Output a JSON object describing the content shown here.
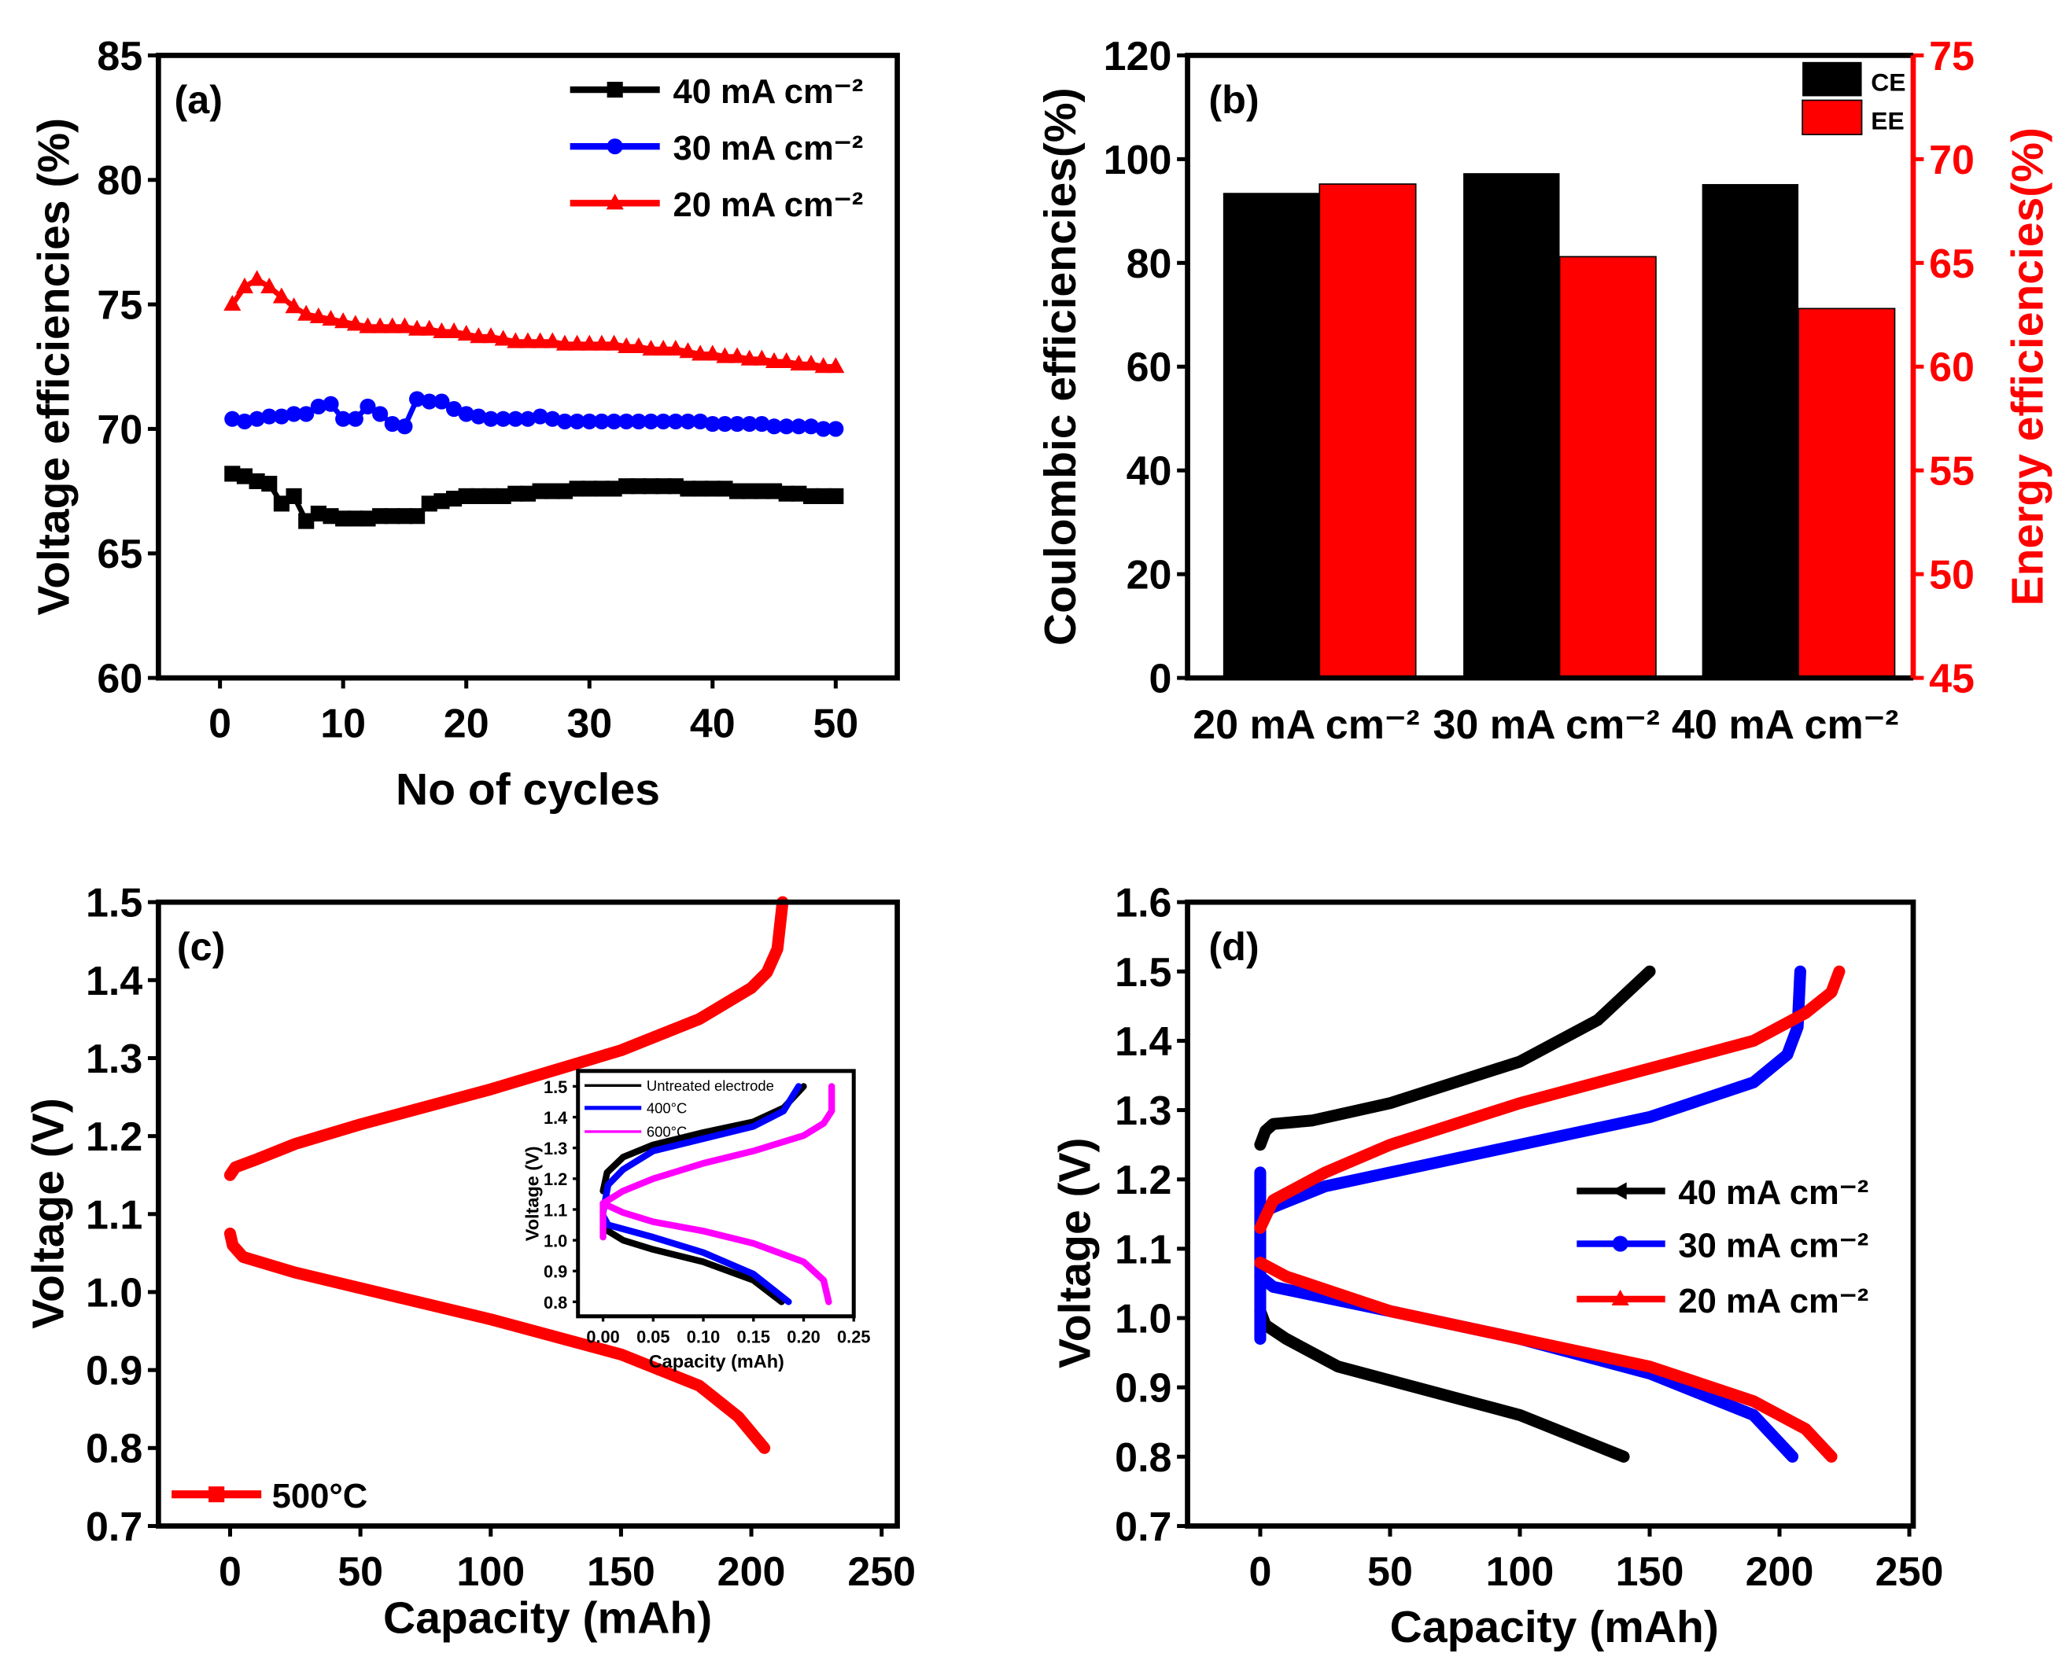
{
  "chart_data": [
    {
      "id": "a",
      "type": "line",
      "panel_label": "(a)",
      "xlabel": "No of cycles",
      "ylabel": "Voltage efficiencies (%)",
      "xlim": [
        -5,
        55
      ],
      "ylim": [
        60,
        85
      ],
      "xticks": [
        0,
        10,
        20,
        30,
        40,
        50
      ],
      "yticks": [
        60,
        65,
        70,
        75,
        80,
        85
      ],
      "legend_position": "top-right",
      "x": [
        1,
        2,
        3,
        4,
        5,
        6,
        7,
        8,
        9,
        10,
        11,
        12,
        13,
        14,
        15,
        16,
        17,
        18,
        19,
        20,
        21,
        22,
        23,
        24,
        25,
        26,
        27,
        28,
        29,
        30,
        31,
        32,
        33,
        34,
        35,
        36,
        37,
        38,
        39,
        40,
        41,
        42,
        43,
        44,
        45,
        46,
        47,
        48,
        49,
        50
      ],
      "series": [
        {
          "name": "40 mA cm⁻²",
          "color": "#000000",
          "marker": "square",
          "values": [
            68.2,
            68.1,
            67.9,
            67.8,
            67.0,
            67.3,
            66.3,
            66.6,
            66.5,
            66.4,
            66.4,
            66.4,
            66.5,
            66.5,
            66.5,
            66.5,
            67.0,
            67.1,
            67.2,
            67.3,
            67.3,
            67.3,
            67.3,
            67.4,
            67.4,
            67.5,
            67.5,
            67.5,
            67.6,
            67.6,
            67.6,
            67.6,
            67.7,
            67.7,
            67.7,
            67.7,
            67.7,
            67.6,
            67.6,
            67.6,
            67.6,
            67.5,
            67.5,
            67.5,
            67.5,
            67.4,
            67.4,
            67.3,
            67.3,
            67.3
          ]
        },
        {
          "name": "30 mA cm⁻²",
          "color": "#0000ff",
          "marker": "circle",
          "values": [
            70.4,
            70.3,
            70.4,
            70.5,
            70.5,
            70.6,
            70.6,
            70.9,
            71.0,
            70.4,
            70.4,
            70.9,
            70.6,
            70.2,
            70.1,
            71.2,
            71.1,
            71.1,
            70.8,
            70.6,
            70.5,
            70.4,
            70.4,
            70.4,
            70.4,
            70.5,
            70.4,
            70.3,
            70.3,
            70.3,
            70.3,
            70.3,
            70.3,
            70.3,
            70.3,
            70.3,
            70.3,
            70.3,
            70.3,
            70.2,
            70.2,
            70.2,
            70.2,
            70.2,
            70.1,
            70.1,
            70.1,
            70.1,
            70.0,
            70.0
          ]
        },
        {
          "name": "20 mA cm⁻²",
          "color": "#ff0000",
          "marker": "triangle",
          "values": [
            75.0,
            75.7,
            76.0,
            75.7,
            75.3,
            74.9,
            74.6,
            74.5,
            74.4,
            74.3,
            74.2,
            74.1,
            74.1,
            74.1,
            74.1,
            74.0,
            74.0,
            73.9,
            73.9,
            73.8,
            73.7,
            73.7,
            73.6,
            73.5,
            73.5,
            73.5,
            73.5,
            73.4,
            73.4,
            73.4,
            73.4,
            73.4,
            73.3,
            73.3,
            73.2,
            73.2,
            73.2,
            73.1,
            73.0,
            73.0,
            72.9,
            72.9,
            72.8,
            72.8,
            72.7,
            72.7,
            72.6,
            72.6,
            72.5,
            72.5
          ]
        }
      ]
    },
    {
      "id": "b",
      "type": "bar",
      "panel_label": "(b)",
      "categories": [
        "20 mA cm⁻²",
        "30 mA cm⁻²",
        "40 mA cm⁻²"
      ],
      "ylabel": "Coulombic efficiencies(%)",
      "y2label": "Energy efficiencies(%)",
      "ylim": [
        0,
        120
      ],
      "y2lim": [
        45,
        75
      ],
      "yticks": [
        0,
        20,
        40,
        60,
        80,
        100,
        120
      ],
      "y2ticks": [
        45,
        50,
        55,
        60,
        65,
        70,
        75
      ],
      "legend_position": "top-right",
      "series": [
        {
          "name": "CE",
          "color": "#000000",
          "axis": "left",
          "values": [
            93.5,
            97.3,
            95.2
          ]
        },
        {
          "name": "EE",
          "color": "#ff0000",
          "axis": "right",
          "values": [
            68.8,
            65.3,
            62.8
          ]
        }
      ]
    },
    {
      "id": "c",
      "type": "line",
      "panel_label": "(c)",
      "xlabel": "Capacity (mAh)",
      "ylabel": "Voltage (V)",
      "xlim": [
        -27.5,
        256
      ],
      "ylim": [
        0.7,
        1.5
      ],
      "xticks": [
        0,
        50,
        100,
        150,
        200,
        250
      ],
      "yticks": [
        "0.7",
        "0.8",
        "0.9",
        "1.0",
        "1.1",
        "1.2",
        "1.3",
        "1.4",
        "1.5"
      ],
      "legend_position": "bottom-left",
      "series": [
        {
          "name": "500°C",
          "color": "#ff0000",
          "charge": [
            [
              0,
              1.15
            ],
            [
              2,
              1.16
            ],
            [
              10,
              1.17
            ],
            [
              25,
              1.19
            ],
            [
              50,
              1.215
            ],
            [
              100,
              1.26
            ],
            [
              150,
              1.31
            ],
            [
              180,
              1.35
            ],
            [
              200,
              1.39
            ],
            [
              206,
              1.41
            ],
            [
              210,
              1.44
            ],
            [
              212,
              1.5
            ]
          ],
          "discharge": [
            [
              0,
              1.075
            ],
            [
              1,
              1.06
            ],
            [
              5,
              1.045
            ],
            [
              25,
              1.025
            ],
            [
              50,
              1.005
            ],
            [
              100,
              0.965
            ],
            [
              150,
              0.92
            ],
            [
              180,
              0.88
            ],
            [
              195,
              0.84
            ],
            [
              205,
              0.8
            ]
          ]
        }
      ]
    },
    {
      "id": "c-inset",
      "type": "line",
      "xlabel": "Capacity (mAh)",
      "ylabel": "Voltage (V)",
      "xlim": [
        -0.025,
        0.25
      ],
      "ylim": [
        0.753,
        1.55
      ],
      "xticks": [
        "0.00",
        "0.05",
        "0.10",
        "0.15",
        "0.20",
        "0.25"
      ],
      "yticks": [
        "0.8",
        "0.9",
        "1.0",
        "1.1",
        "1.2",
        "1.3",
        "1.4",
        "1.5"
      ],
      "legend_position": "top-left",
      "series": [
        {
          "name": "Untreated electrode",
          "color": "#000000",
          "charge": [
            [
              0,
              1.16
            ],
            [
              0.004,
              1.22
            ],
            [
              0.02,
              1.27
            ],
            [
              0.05,
              1.31
            ],
            [
              0.1,
              1.35
            ],
            [
              0.15,
              1.385
            ],
            [
              0.18,
              1.43
            ],
            [
              0.2,
              1.5
            ]
          ],
          "discharge": [
            [
              0,
              1.04
            ],
            [
              0.02,
              1.0
            ],
            [
              0.05,
              0.97
            ],
            [
              0.1,
              0.93
            ],
            [
              0.15,
              0.87
            ],
            [
              0.178,
              0.8
            ]
          ]
        },
        {
          "name": "400°C",
          "color": "#0000ff",
          "charge": [
            [
              0,
              1.09
            ],
            [
              0.005,
              1.18
            ],
            [
              0.02,
              1.23
            ],
            [
              0.05,
              1.29
            ],
            [
              0.1,
              1.33
            ],
            [
              0.15,
              1.37
            ],
            [
              0.18,
              1.42
            ],
            [
              0.195,
              1.5
            ]
          ],
          "discharge": [
            [
              0,
              1.08
            ],
            [
              0.005,
              1.05
            ],
            [
              0.05,
              1.01
            ],
            [
              0.1,
              0.96
            ],
            [
              0.15,
              0.89
            ],
            [
              0.185,
              0.8
            ]
          ]
        },
        {
          "name": "600°C",
          "color": "#ff00ff",
          "charge": [
            [
              0,
              1.01
            ],
            [
              0,
              1.12
            ],
            [
              0.02,
              1.16
            ],
            [
              0.05,
              1.2
            ],
            [
              0.1,
              1.25
            ],
            [
              0.15,
              1.29
            ],
            [
              0.2,
              1.34
            ],
            [
              0.22,
              1.38
            ],
            [
              0.228,
              1.42
            ],
            [
              0.228,
              1.5
            ]
          ],
          "discharge": [
            [
              0,
              1.12
            ],
            [
              0.02,
              1.09
            ],
            [
              0.05,
              1.06
            ],
            [
              0.1,
              1.03
            ],
            [
              0.15,
              0.99
            ],
            [
              0.2,
              0.93
            ],
            [
              0.22,
              0.87
            ],
            [
              0.225,
              0.8
            ]
          ]
        }
      ]
    },
    {
      "id": "d",
      "type": "line",
      "panel_label": "(d)",
      "xlabel": "Capacity (mAh)",
      "ylabel": "Voltage (V)",
      "xlim": [
        -28,
        251.5
      ],
      "ylim": [
        0.7,
        1.6
      ],
      "xticks": [
        0,
        50,
        100,
        150,
        200,
        250
      ],
      "yticks": [
        "0.7",
        "0.8",
        "0.9",
        "1.0",
        "1.1",
        "1.2",
        "1.3",
        "1.4",
        "1.5",
        "1.6"
      ],
      "legend_position": "center-right",
      "series": [
        {
          "name": "40 mA cm⁻²",
          "color": "#000000",
          "charge": [
            [
              0,
              1.25
            ],
            [
              2,
              1.27
            ],
            [
              5,
              1.28
            ],
            [
              20,
              1.285
            ],
            [
              50,
              1.31
            ],
            [
              100,
              1.37
            ],
            [
              130,
              1.43
            ],
            [
              150,
              1.5
            ]
          ],
          "discharge": [
            [
              0,
              1.01
            ],
            [
              2,
              0.99
            ],
            [
              10,
              0.97
            ],
            [
              30,
              0.93
            ],
            [
              50,
              0.91
            ],
            [
              100,
              0.86
            ],
            [
              140,
              0.8
            ]
          ]
        },
        {
          "name": "30 mA cm⁻²",
          "color": "#0000ff",
          "charge": [
            [
              0,
              0.97
            ],
            [
              0,
              1.21
            ],
            [
              0,
              1.15
            ],
            [
              5,
              1.16
            ],
            [
              25,
              1.19
            ],
            [
              50,
              1.21
            ],
            [
              100,
              1.25
            ],
            [
              150,
              1.29
            ],
            [
              190,
              1.34
            ],
            [
              203,
              1.38
            ],
            [
              207,
              1.42
            ],
            [
              208,
              1.5
            ]
          ],
          "discharge": [
            [
              0,
              1.06
            ],
            [
              5,
              1.045
            ],
            [
              50,
              1.01
            ],
            [
              100,
              0.97
            ],
            [
              150,
              0.92
            ],
            [
              190,
              0.86
            ],
            [
              205,
              0.8
            ]
          ]
        },
        {
          "name": "20 mA cm⁻²",
          "color": "#ff0000",
          "charge": [
            [
              0,
              1.13
            ],
            [
              5,
              1.17
            ],
            [
              25,
              1.21
            ],
            [
              50,
              1.25
            ],
            [
              100,
              1.31
            ],
            [
              150,
              1.36
            ],
            [
              190,
              1.4
            ],
            [
              210,
              1.44
            ],
            [
              220,
              1.47
            ],
            [
              223,
              1.5
            ]
          ],
          "discharge": [
            [
              0,
              1.08
            ],
            [
              10,
              1.06
            ],
            [
              50,
              1.01
            ],
            [
              100,
              0.97
            ],
            [
              150,
              0.93
            ],
            [
              190,
              0.88
            ],
            [
              210,
              0.84
            ],
            [
              220,
              0.8
            ]
          ]
        }
      ]
    }
  ]
}
